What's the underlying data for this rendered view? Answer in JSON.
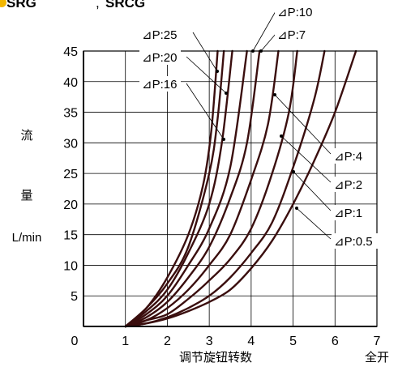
{
  "header": {
    "label_left": "SRG",
    "label_right": "SRCG",
    "marker_color": "#f2b600"
  },
  "chart_data": {
    "type": "line",
    "xlabel": "调节旋钮转数",
    "xlabel_end": "全开",
    "ylabel_lines": [
      "流",
      "量",
      "L/min"
    ],
    "xlim": [
      0,
      7
    ],
    "ylim": [
      0,
      45
    ],
    "x_ticks": [
      0,
      1,
      2,
      3,
      4,
      5,
      6,
      7
    ],
    "y_ticks": [
      5,
      10,
      15,
      20,
      25,
      30,
      35,
      40,
      45
    ],
    "grid": true,
    "line_color": "#3a0e0e",
    "series": [
      {
        "name": "⊿P:25",
        "points": [
          [
            1.0,
            0
          ],
          [
            1.5,
            3
          ],
          [
            2.0,
            8
          ],
          [
            2.5,
            15
          ],
          [
            2.85,
            23
          ],
          [
            3.05,
            32
          ],
          [
            3.2,
            45
          ]
        ]
      },
      {
        "name": "⊿P:20",
        "points": [
          [
            1.0,
            0
          ],
          [
            1.5,
            3
          ],
          [
            2.0,
            7
          ],
          [
            2.5,
            13
          ],
          [
            3.0,
            25
          ],
          [
            3.2,
            34
          ],
          [
            3.35,
            45
          ]
        ]
      },
      {
        "name": "⊿P:16",
        "points": [
          [
            1.0,
            0
          ],
          [
            1.5,
            2.5
          ],
          [
            2.0,
            6
          ],
          [
            2.5,
            12
          ],
          [
            3.0,
            20
          ],
          [
            3.3,
            30
          ],
          [
            3.55,
            45
          ]
        ]
      },
      {
        "name": "⊿P:10",
        "points": [
          [
            1.0,
            0
          ],
          [
            1.5,
            2
          ],
          [
            2.0,
            5
          ],
          [
            2.5,
            10
          ],
          [
            3.0,
            16
          ],
          [
            3.5,
            26
          ],
          [
            3.9,
            45
          ]
        ]
      },
      {
        "name": "⊿P:7",
        "points": [
          [
            1.0,
            0
          ],
          [
            1.5,
            1.5
          ],
          [
            2.0,
            4
          ],
          [
            2.5,
            8
          ],
          [
            3.0,
            13
          ],
          [
            3.5,
            21
          ],
          [
            3.9,
            30
          ],
          [
            4.2,
            45
          ]
        ]
      },
      {
        "name": "⊿P:4",
        "points": [
          [
            1.0,
            0
          ],
          [
            1.5,
            1
          ],
          [
            2.0,
            3
          ],
          [
            2.5,
            6
          ],
          [
            3.0,
            10
          ],
          [
            3.5,
            15
          ],
          [
            4.0,
            24
          ],
          [
            4.4,
            33
          ],
          [
            4.65,
            45
          ]
        ]
      },
      {
        "name": "⊿P:2",
        "points": [
          [
            1.0,
            0
          ],
          [
            1.5,
            1
          ],
          [
            2.0,
            2
          ],
          [
            2.5,
            4.5
          ],
          [
            3.0,
            7.5
          ],
          [
            3.5,
            11
          ],
          [
            4.0,
            16
          ],
          [
            4.5,
            25
          ],
          [
            4.9,
            35
          ],
          [
            5.1,
            45
          ]
        ]
      },
      {
        "name": "⊿P:1",
        "points": [
          [
            1.0,
            0
          ],
          [
            1.5,
            0.5
          ],
          [
            2.0,
            1.5
          ],
          [
            2.5,
            3
          ],
          [
            3.0,
            5
          ],
          [
            3.5,
            8
          ],
          [
            4.0,
            12
          ],
          [
            4.5,
            17
          ],
          [
            5.0,
            26
          ],
          [
            5.5,
            37
          ],
          [
            5.75,
            45
          ]
        ]
      },
      {
        "name": "⊿P:0.5",
        "points": [
          [
            1.0,
            0
          ],
          [
            1.5,
            0.5
          ],
          [
            2.0,
            1.3
          ],
          [
            2.5,
            2.5
          ],
          [
            3.0,
            4
          ],
          [
            3.5,
            6
          ],
          [
            4.0,
            9.5
          ],
          [
            4.5,
            14
          ],
          [
            5.0,
            20
          ],
          [
            5.5,
            27
          ],
          [
            6.0,
            35
          ],
          [
            6.5,
            45
          ]
        ]
      }
    ]
  }
}
